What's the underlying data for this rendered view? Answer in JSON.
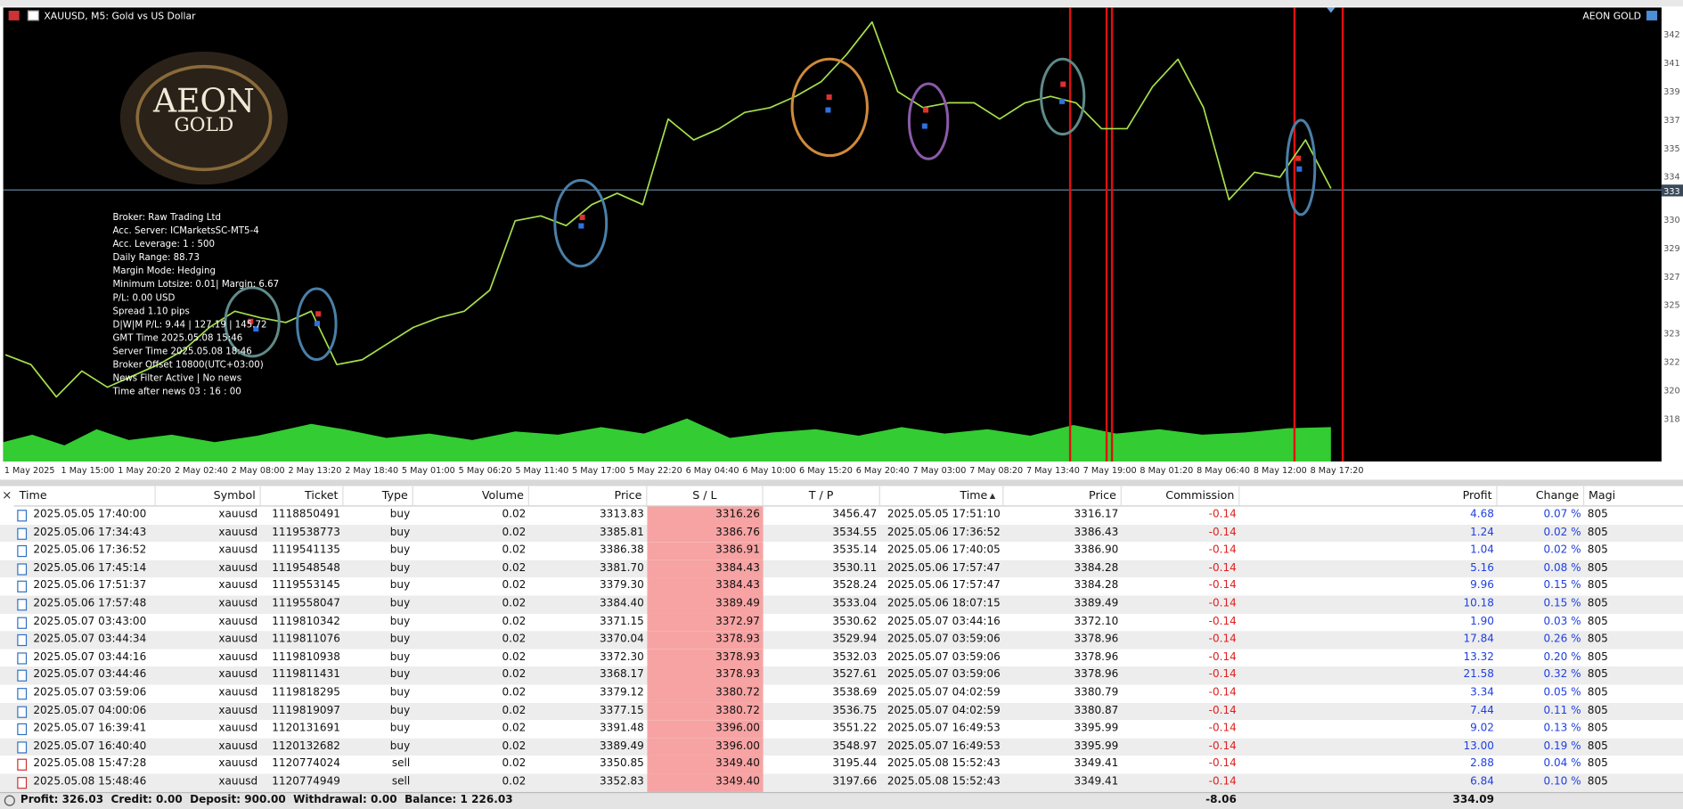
{
  "chart": {
    "symbol_title": "XAUUSD, M5:  Gold vs US Dollar",
    "brand": "AEON GOLD",
    "logo_top": "AEON",
    "logo_bottom": "GOLD",
    "info_lines": [
      "Broker:  Raw Trading Ltd",
      "Acc. Server:  ICMarketsSC-MT5-4",
      "Acc. Leverage:  1 : 500",
      "Daily Range:  88.73",
      "Margin Mode:  Hedging",
      "Minimum Lotsize: 0.01| Margin: 6.67",
      "P/L: 0.00 USD",
      "Spread 1.10 pips",
      "D|W|M P/L: 9.44 | 127.19 | 145.72",
      "GMT Time 2025.05.08 15:46",
      "Server Time 2025.05.08 18:46",
      "Broker Offset 10800(UTC+03:00)",
      "News Filter Active | No news",
      "Time after news 03 : 16 : 00"
    ],
    "y_labels": [
      "342",
      "341",
      "339",
      "337",
      "335",
      "334",
      "330",
      "329",
      "327",
      "325",
      "323",
      "322",
      "320",
      "318"
    ],
    "current_price_label": "333",
    "x_labels": [
      "1 May 2025",
      "1 May 15:00",
      "1 May 20:20",
      "2 May 02:40",
      "2 May 08:00",
      "2 May 13:20",
      "2 May 18:40",
      "5 May 01:00",
      "5 May 06:20",
      "5 May 11:40",
      "5 May 17:00",
      "5 May 22:20",
      "6 May 04:40",
      "6 May 10:00",
      "6 May 15:20",
      "6 May 20:40",
      "7 May 03:00",
      "7 May 08:20",
      "7 May 13:40",
      "7 May 19:00",
      "8 May 01:20",
      "8 May 06:40",
      "8 May 12:00",
      "8 May 17:20"
    ],
    "price_range": [
      3164,
      3445
    ],
    "price_color": "#a6e04c",
    "price": [
      3230,
      3224,
      3204,
      3220,
      3210,
      3217,
      3224,
      3233,
      3247,
      3257,
      3253,
      3250,
      3257,
      3224,
      3227,
      3237,
      3247,
      3253,
      3257,
      3270,
      3313,
      3316,
      3310,
      3323,
      3330,
      3323,
      3376,
      3363,
      3370,
      3380,
      3383,
      3390,
      3399,
      3416,
      3436,
      3393,
      3383,
      3386,
      3386,
      3376,
      3386,
      3390,
      3386,
      3370,
      3370,
      3396,
      3413,
      3383,
      3326,
      3343,
      3340,
      3363,
      3333
    ]
  },
  "table": {
    "headers": [
      "Time",
      "Symbol",
      "Ticket",
      "Type",
      "Volume",
      "Price",
      "S / L",
      "T / P",
      "Time",
      "Price",
      "Commission",
      "Profit",
      "Change",
      "Magi"
    ],
    "rows": [
      [
        "2025.05.05 17:40:00",
        "xauusd",
        "1118850491",
        "buy",
        "0.02",
        "3313.83",
        "3316.26",
        "3456.47",
        "2025.05.05 17:51:10",
        "3316.17",
        "-0.14",
        "4.68",
        "0.07 %",
        "805"
      ],
      [
        "2025.05.06 17:34:43",
        "xauusd",
        "1119538773",
        "buy",
        "0.02",
        "3385.81",
        "3386.76",
        "3534.55",
        "2025.05.06 17:36:52",
        "3386.43",
        "-0.14",
        "1.24",
        "0.02 %",
        "805"
      ],
      [
        "2025.05.06 17:36:52",
        "xauusd",
        "1119541135",
        "buy",
        "0.02",
        "3386.38",
        "3386.91",
        "3535.14",
        "2025.05.06 17:40:05",
        "3386.90",
        "-0.14",
        "1.04",
        "0.02 %",
        "805"
      ],
      [
        "2025.05.06 17:45:14",
        "xauusd",
        "1119548548",
        "buy",
        "0.02",
        "3381.70",
        "3384.43",
        "3530.11",
        "2025.05.06 17:57:47",
        "3384.28",
        "-0.14",
        "5.16",
        "0.08 %",
        "805"
      ],
      [
        "2025.05.06 17:51:37",
        "xauusd",
        "1119553145",
        "buy",
        "0.02",
        "3379.30",
        "3384.43",
        "3528.24",
        "2025.05.06 17:57:47",
        "3384.28",
        "-0.14",
        "9.96",
        "0.15 %",
        "805"
      ],
      [
        "2025.05.06 17:57:48",
        "xauusd",
        "1119558047",
        "buy",
        "0.02",
        "3384.40",
        "3389.49",
        "3533.04",
        "2025.05.06 18:07:15",
        "3389.49",
        "-0.14",
        "10.18",
        "0.15 %",
        "805"
      ],
      [
        "2025.05.07 03:43:00",
        "xauusd",
        "1119810342",
        "buy",
        "0.02",
        "3371.15",
        "3372.97",
        "3530.62",
        "2025.05.07 03:44:16",
        "3372.10",
        "-0.14",
        "1.90",
        "0.03 %",
        "805"
      ],
      [
        "2025.05.07 03:44:34",
        "xauusd",
        "1119811076",
        "buy",
        "0.02",
        "3370.04",
        "3378.93",
        "3529.94",
        "2025.05.07 03:59:06",
        "3378.96",
        "-0.14",
        "17.84",
        "0.26 %",
        "805"
      ],
      [
        "2025.05.07 03:44:16",
        "xauusd",
        "1119810938",
        "buy",
        "0.02",
        "3372.30",
        "3378.93",
        "3532.03",
        "2025.05.07 03:59:06",
        "3378.96",
        "-0.14",
        "13.32",
        "0.20 %",
        "805"
      ],
      [
        "2025.05.07 03:44:46",
        "xauusd",
        "1119811431",
        "buy",
        "0.02",
        "3368.17",
        "3378.93",
        "3527.61",
        "2025.05.07 03:59:06",
        "3378.96",
        "-0.14",
        "21.58",
        "0.32 %",
        "805"
      ],
      [
        "2025.05.07 03:59:06",
        "xauusd",
        "1119818295",
        "buy",
        "0.02",
        "3379.12",
        "3380.72",
        "3538.69",
        "2025.05.07 04:02:59",
        "3380.79",
        "-0.14",
        "3.34",
        "0.05 %",
        "805"
      ],
      [
        "2025.05.07 04:00:06",
        "xauusd",
        "1119819097",
        "buy",
        "0.02",
        "3377.15",
        "3380.72",
        "3536.75",
        "2025.05.07 04:02:59",
        "3380.87",
        "-0.14",
        "7.44",
        "0.11 %",
        "805"
      ],
      [
        "2025.05.07 16:39:41",
        "xauusd",
        "1120131691",
        "buy",
        "0.02",
        "3391.48",
        "3396.00",
        "3551.22",
        "2025.05.07 16:49:53",
        "3395.99",
        "-0.14",
        "9.02",
        "0.13 %",
        "805"
      ],
      [
        "2025.05.07 16:40:40",
        "xauusd",
        "1120132682",
        "buy",
        "0.02",
        "3389.49",
        "3396.00",
        "3548.97",
        "2025.05.07 16:49:53",
        "3395.99",
        "-0.14",
        "13.00",
        "0.19 %",
        "805"
      ],
      [
        "2025.05.08 15:47:28",
        "xauusd",
        "1120774024",
        "sell",
        "0.02",
        "3350.85",
        "3349.40",
        "3195.44",
        "2025.05.08 15:52:43",
        "3349.41",
        "-0.14",
        "2.88",
        "0.04 %",
        "805"
      ],
      [
        "2025.05.08 15:48:46",
        "xauusd",
        "1120774949",
        "sell",
        "0.02",
        "3352.83",
        "3349.40",
        "3197.66",
        "2025.05.08 15:52:43",
        "3349.41",
        "-0.14",
        "6.84",
        "0.10 %",
        "805"
      ]
    ],
    "footer": "Profit: 326.03  Credit: 0.00  Deposit: 900.00  Withdrawal: 0.00  Balance: 1 226.03",
    "footer_commission": "-8.06",
    "footer_profit": "334.09"
  }
}
